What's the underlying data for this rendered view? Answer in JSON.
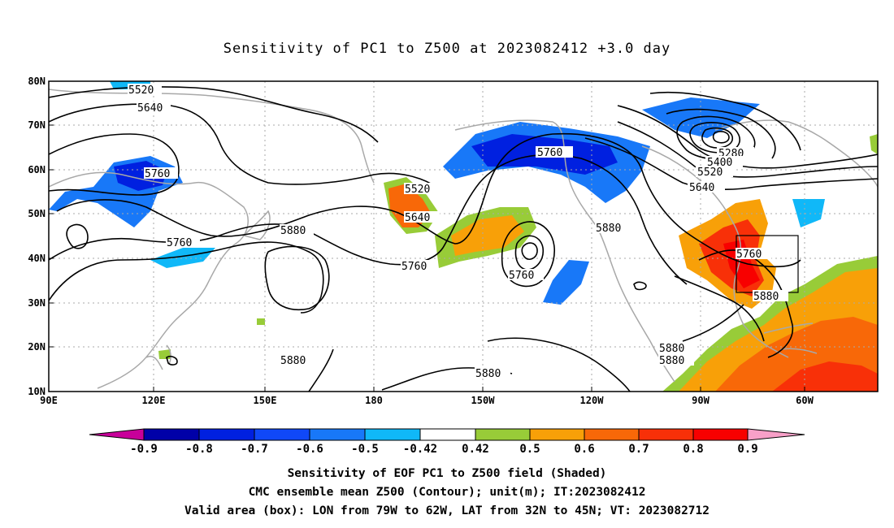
{
  "title": "Sensitivity of PC1 to Z500 at 2023082412 +3.0 day",
  "map": {
    "lat_labels": [
      "80N",
      "70N",
      "60N",
      "50N",
      "40N",
      "30N",
      "20N",
      "10N"
    ],
    "lon_labels": [
      "90E",
      "120E",
      "150E",
      "180",
      "150W",
      "120W",
      "90W",
      "60W"
    ],
    "extent": {
      "lon_min": 90,
      "lon_max": 310,
      "lat_min": 10,
      "lat_max": 80
    },
    "valid_box": {
      "lon_from": "79W",
      "lon_to": "62W",
      "lat_from": "32N",
      "lat_to": "45N"
    },
    "contour_labels": [
      "5520",
      "5640",
      "5760",
      "5760",
      "5880",
      "5520",
      "5640",
      "5760",
      "5760",
      "5760",
      "5880",
      "5880",
      "5280",
      "5400",
      "5520",
      "5640",
      "5760",
      "5880",
      "5880",
      "5880",
      "5880"
    ]
  },
  "colorbar": {
    "labels": [
      "-0.9",
      "-0.8",
      "-0.7",
      "-0.6",
      "-0.5",
      "-0.42",
      "0.42",
      "0.5",
      "0.6",
      "0.7",
      "0.8",
      "0.9"
    ],
    "colors": [
      "#c8009a",
      "#0000a8",
      "#0020e0",
      "#1048f8",
      "#1878f8",
      "#10b8f8",
      "#ffffff",
      "#98cc38",
      "#f8a008",
      "#f86808",
      "#f83008",
      "#f80000",
      "#f8a0c8"
    ]
  },
  "captions": {
    "line1": "Sensitivity of EOF PC1 to Z500 field (Shaded)",
    "line2": "CMC ensemble mean Z500 (Contour); unit(m); IT:2023082412",
    "line3": "Valid area (box): LON from 79W to 62W, LAT from 32N to 45N; VT: 2023082712"
  }
}
